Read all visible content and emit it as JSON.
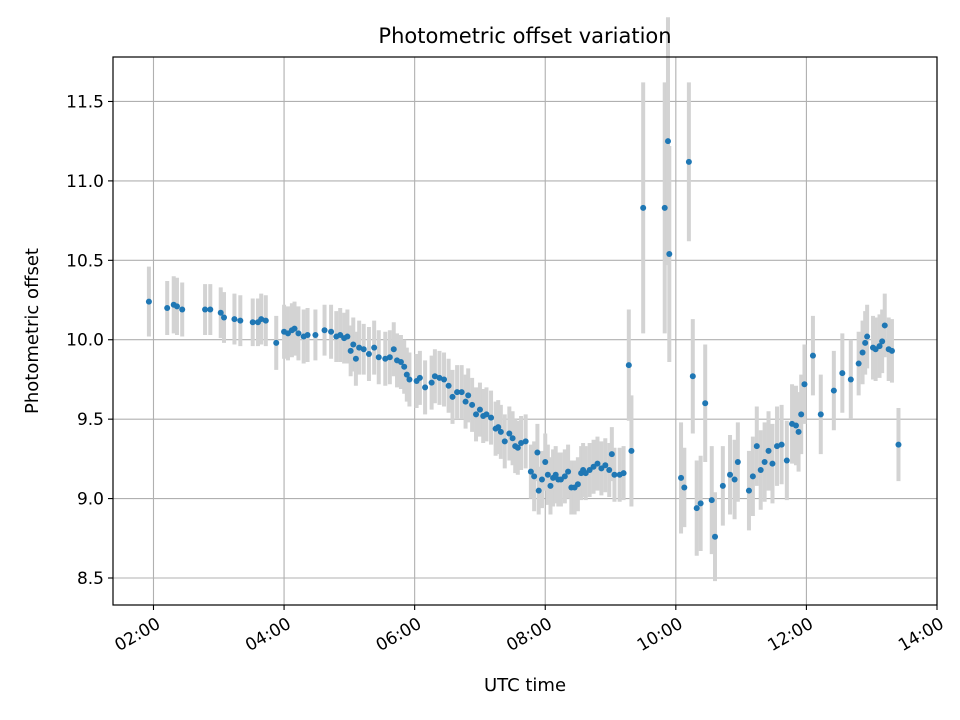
{
  "chart_data": {
    "type": "scatter",
    "title": "Photometric offset variation",
    "xlabel": "UTC time",
    "ylabel": "Photometric offset",
    "x_unit": "hours",
    "xlim": [
      1.38,
      14.0
    ],
    "ylim": [
      8.33,
      11.78
    ],
    "x_ticks": [
      {
        "value": 2,
        "label": "02:00"
      },
      {
        "value": 4,
        "label": "04:00"
      },
      {
        "value": 6,
        "label": "06:00"
      },
      {
        "value": 8,
        "label": "08:00"
      },
      {
        "value": 10,
        "label": "10:00"
      },
      {
        "value": 12,
        "label": "12:00"
      },
      {
        "value": 14,
        "label": "14:00"
      }
    ],
    "y_ticks": [
      {
        "value": 8.5,
        "label": "8.5"
      },
      {
        "value": 9.0,
        "label": "9.0"
      },
      {
        "value": 9.5,
        "label": "9.5"
      },
      {
        "value": 10.0,
        "label": "10.0"
      },
      {
        "value": 10.5,
        "label": "10.5"
      },
      {
        "value": 11.0,
        "label": "11.0"
      },
      {
        "value": 11.5,
        "label": "11.5"
      }
    ],
    "grid": true,
    "marker_color": "#1f77b4",
    "errorbar_color": "#d3d3d3",
    "points": [
      [
        1.93,
        10.24,
        0.22
      ],
      [
        2.21,
        10.2,
        0.17
      ],
      [
        2.31,
        10.22,
        0.18
      ],
      [
        2.36,
        10.21,
        0.18
      ],
      [
        2.44,
        10.19,
        0.17
      ],
      [
        2.79,
        10.19,
        0.16
      ],
      [
        2.87,
        10.19,
        0.16
      ],
      [
        3.03,
        10.17,
        0.16
      ],
      [
        3.08,
        10.14,
        0.16
      ],
      [
        3.24,
        10.13,
        0.16
      ],
      [
        3.33,
        10.12,
        0.16
      ],
      [
        3.52,
        10.11,
        0.15
      ],
      [
        3.6,
        10.11,
        0.15
      ],
      [
        3.65,
        10.13,
        0.16
      ],
      [
        3.72,
        10.12,
        0.16
      ],
      [
        3.88,
        9.98,
        0.17
      ],
      [
        4.0,
        10.05,
        0.17
      ],
      [
        4.06,
        10.04,
        0.17
      ],
      [
        4.12,
        10.06,
        0.17
      ],
      [
        4.16,
        10.07,
        0.17
      ],
      [
        4.22,
        10.04,
        0.17
      ],
      [
        4.3,
        10.02,
        0.17
      ],
      [
        4.36,
        10.03,
        0.17
      ],
      [
        4.48,
        10.03,
        0.16
      ],
      [
        4.62,
        10.06,
        0.16
      ],
      [
        4.72,
        10.05,
        0.17
      ],
      [
        4.8,
        10.02,
        0.16
      ],
      [
        4.86,
        10.03,
        0.17
      ],
      [
        4.92,
        10.01,
        0.16
      ],
      [
        4.97,
        10.02,
        0.17
      ],
      [
        5.02,
        9.93,
        0.16
      ],
      [
        5.06,
        9.97,
        0.17
      ],
      [
        5.1,
        9.88,
        0.17
      ],
      [
        5.15,
        9.95,
        0.17
      ],
      [
        5.22,
        9.94,
        0.16
      ],
      [
        5.3,
        9.91,
        0.17
      ],
      [
        5.38,
        9.95,
        0.17
      ],
      [
        5.45,
        9.89,
        0.17
      ],
      [
        5.55,
        9.88,
        0.17
      ],
      [
        5.62,
        9.89,
        0.17
      ],
      [
        5.68,
        9.94,
        0.17
      ],
      [
        5.73,
        9.87,
        0.17
      ],
      [
        5.79,
        9.86,
        0.17
      ],
      [
        5.84,
        9.83,
        0.17
      ],
      [
        5.88,
        9.78,
        0.17
      ],
      [
        5.92,
        9.75,
        0.17
      ],
      [
        6.03,
        9.74,
        0.17
      ],
      [
        6.08,
        9.76,
        0.17
      ],
      [
        6.16,
        9.7,
        0.17
      ],
      [
        6.26,
        9.73,
        0.17
      ],
      [
        6.31,
        9.77,
        0.17
      ],
      [
        6.38,
        9.76,
        0.17
      ],
      [
        6.45,
        9.75,
        0.17
      ],
      [
        6.52,
        9.71,
        0.17
      ],
      [
        6.58,
        9.64,
        0.17
      ],
      [
        6.65,
        9.67,
        0.17
      ],
      [
        6.72,
        9.67,
        0.17
      ],
      [
        6.78,
        9.61,
        0.17
      ],
      [
        6.82,
        9.65,
        0.17
      ],
      [
        6.88,
        9.59,
        0.17
      ],
      [
        6.94,
        9.53,
        0.17
      ],
      [
        7.0,
        9.56,
        0.17
      ],
      [
        7.05,
        9.52,
        0.17
      ],
      [
        7.1,
        9.53,
        0.17
      ],
      [
        7.17,
        9.51,
        0.17
      ],
      [
        7.24,
        9.44,
        0.17
      ],
      [
        7.28,
        9.45,
        0.17
      ],
      [
        7.32,
        9.42,
        0.17
      ],
      [
        7.38,
        9.36,
        0.17
      ],
      [
        7.45,
        9.41,
        0.17
      ],
      [
        7.5,
        9.38,
        0.17
      ],
      [
        7.54,
        9.33,
        0.17
      ],
      [
        7.58,
        9.32,
        0.17
      ],
      [
        7.63,
        9.35,
        0.17
      ],
      [
        7.7,
        9.36,
        0.17
      ],
      [
        7.78,
        9.17,
        0.17
      ],
      [
        7.83,
        9.14,
        0.22
      ],
      [
        7.88,
        9.29,
        0.18
      ],
      [
        7.9,
        9.05,
        0.15
      ],
      [
        7.95,
        9.12,
        0.18
      ],
      [
        8.0,
        9.23,
        0.18
      ],
      [
        8.04,
        9.15,
        0.19
      ],
      [
        8.08,
        9.08,
        0.18
      ],
      [
        8.12,
        9.13,
        0.18
      ],
      [
        8.16,
        9.15,
        0.18
      ],
      [
        8.2,
        9.12,
        0.17
      ],
      [
        8.24,
        9.12,
        0.17
      ],
      [
        8.3,
        9.14,
        0.17
      ],
      [
        8.35,
        9.17,
        0.17
      ],
      [
        8.4,
        9.07,
        0.17
      ],
      [
        8.45,
        9.07,
        0.17
      ],
      [
        8.5,
        9.09,
        0.17
      ],
      [
        8.55,
        9.16,
        0.17
      ],
      [
        8.58,
        9.18,
        0.17
      ],
      [
        8.62,
        9.16,
        0.17
      ],
      [
        8.68,
        9.18,
        0.17
      ],
      [
        8.74,
        9.2,
        0.17
      ],
      [
        8.8,
        9.22,
        0.17
      ],
      [
        8.86,
        9.19,
        0.17
      ],
      [
        8.92,
        9.21,
        0.17
      ],
      [
        8.98,
        9.18,
        0.17
      ],
      [
        9.02,
        9.28,
        0.17
      ],
      [
        9.06,
        9.15,
        0.17
      ],
      [
        9.14,
        9.15,
        0.17
      ],
      [
        9.2,
        9.16,
        0.17
      ],
      [
        9.28,
        9.84,
        0.35
      ],
      [
        9.32,
        9.3,
        0.35
      ],
      [
        9.5,
        10.83,
        0.79
      ],
      [
        9.83,
        10.83,
        0.79
      ],
      [
        9.88,
        11.25,
        0.78
      ],
      [
        9.9,
        10.54,
        0.68
      ],
      [
        10.08,
        9.13,
        0.35
      ],
      [
        10.13,
        9.07,
        0.25
      ],
      [
        10.2,
        11.12,
        0.5
      ],
      [
        10.26,
        9.77,
        0.36
      ],
      [
        10.32,
        8.94,
        0.3
      ],
      [
        10.38,
        8.97,
        0.3
      ],
      [
        10.45,
        9.6,
        0.37
      ],
      [
        10.55,
        8.99,
        0.34
      ],
      [
        10.6,
        8.76,
        0.28
      ],
      [
        10.72,
        9.08,
        0.25
      ],
      [
        10.83,
        9.15,
        0.25
      ],
      [
        10.9,
        9.12,
        0.25
      ],
      [
        10.95,
        9.23,
        0.25
      ],
      [
        11.12,
        9.05,
        0.25
      ],
      [
        11.18,
        9.14,
        0.25
      ],
      [
        11.24,
        9.33,
        0.25
      ],
      [
        11.3,
        9.18,
        0.25
      ],
      [
        11.36,
        9.23,
        0.25
      ],
      [
        11.42,
        9.3,
        0.25
      ],
      [
        11.48,
        9.22,
        0.25
      ],
      [
        11.55,
        9.33,
        0.25
      ],
      [
        11.62,
        9.34,
        0.25
      ],
      [
        11.7,
        9.24,
        0.25
      ],
      [
        11.78,
        9.47,
        0.25
      ],
      [
        11.84,
        9.46,
        0.25
      ],
      [
        11.88,
        9.42,
        0.25
      ],
      [
        11.92,
        9.53,
        0.25
      ],
      [
        11.97,
        9.72,
        0.25
      ],
      [
        12.1,
        9.9,
        0.25
      ],
      [
        12.22,
        9.53,
        0.25
      ],
      [
        12.42,
        9.68,
        0.25
      ],
      [
        12.55,
        9.79,
        0.25
      ],
      [
        12.68,
        9.75,
        0.25
      ],
      [
        12.8,
        9.85,
        0.2
      ],
      [
        12.86,
        9.92,
        0.2
      ],
      [
        12.9,
        9.98,
        0.2
      ],
      [
        12.93,
        10.02,
        0.2
      ],
      [
        13.02,
        9.95,
        0.2
      ],
      [
        13.06,
        9.94,
        0.2
      ],
      [
        13.12,
        9.96,
        0.2
      ],
      [
        13.16,
        9.99,
        0.2
      ],
      [
        13.2,
        10.09,
        0.2
      ],
      [
        13.26,
        9.94,
        0.2
      ],
      [
        13.31,
        9.93,
        0.2
      ],
      [
        13.41,
        9.34,
        0.23
      ]
    ]
  }
}
